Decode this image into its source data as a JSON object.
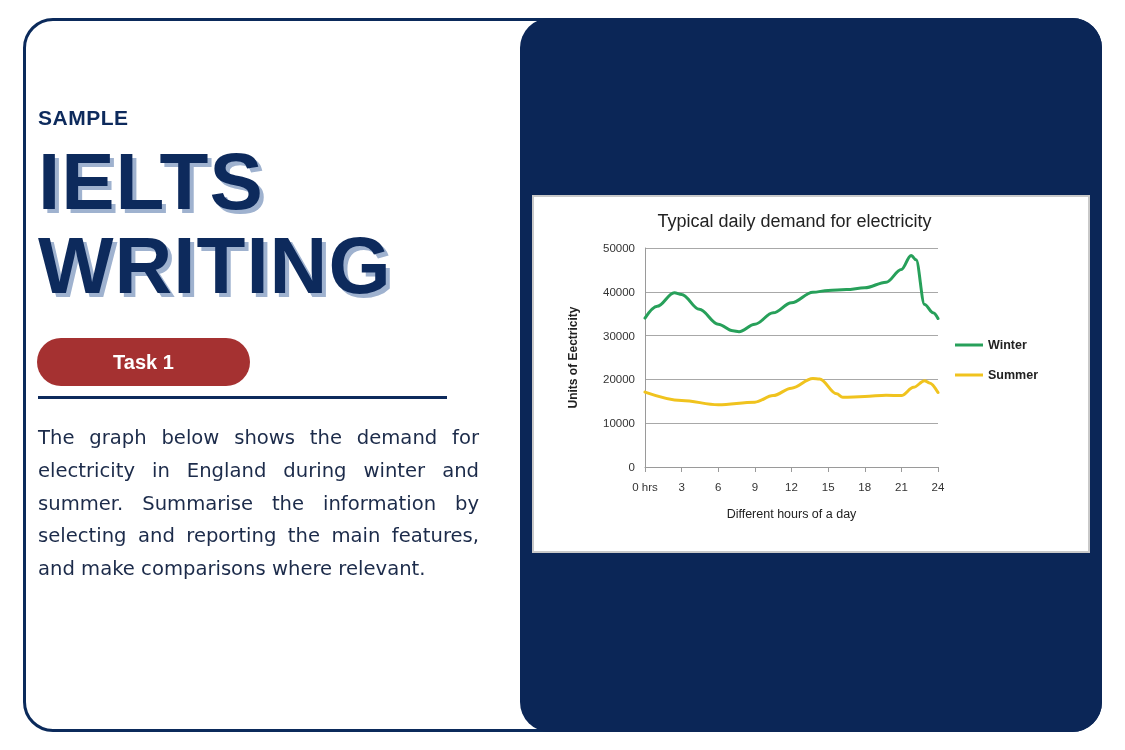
{
  "chart_data": {
    "type": "line",
    "title": "Typical daily demand for electricity",
    "xlabel": "Different hours of a day",
    "ylabel": "Units of Eectricity",
    "annotations": [
      "SAMPLE",
      "IELTS WRITING",
      "Task 1",
      "The graph below shows the demand for electricity in England during winter and summer. Summarise the information by selecting and reporting the main features, and make comparisons where relevant."
    ],
    "xlim": [
      0,
      24
    ],
    "xticks": [
      {
        "value": 0,
        "label": "0 hrs"
      },
      3,
      6,
      9,
      12,
      15,
      18,
      21,
      24
    ],
    "ylim": [
      0,
      50000
    ],
    "yticks": [
      0,
      10000,
      20000,
      30000,
      40000,
      50000
    ],
    "grid": "y",
    "legend": "right",
    "series": [
      {
        "name": "Winter",
        "color": "#27a05a",
        "x": [
          0,
          1,
          2.4,
          3,
          4.45,
          6,
          7.2,
          7.7,
          9,
          10.5,
          12,
          13.75,
          15,
          16.5,
          18,
          19.75,
          21,
          21.8,
          22.2,
          22.9,
          23.6,
          24
        ],
        "values": [
          34000,
          36700,
          39800,
          39400,
          36000,
          32600,
          31100,
          30900,
          32600,
          35200,
          37500,
          39900,
          40300,
          40500,
          40900,
          42200,
          45100,
          48300,
          47300,
          37100,
          35200,
          33900
        ]
      },
      {
        "name": "Summer",
        "color": "#f0c31e",
        "x": [
          0,
          3,
          6,
          9,
          10.5,
          12,
          13.75,
          14.3,
          15.7,
          16.2,
          18,
          19.75,
          21,
          22,
          22.9,
          23.3,
          24
        ],
        "values": [
          17100,
          15200,
          14200,
          14800,
          16300,
          18000,
          20200,
          20100,
          16700,
          15900,
          16100,
          16400,
          16300,
          18200,
          19700,
          19200,
          17000
        ]
      }
    ]
  }
}
